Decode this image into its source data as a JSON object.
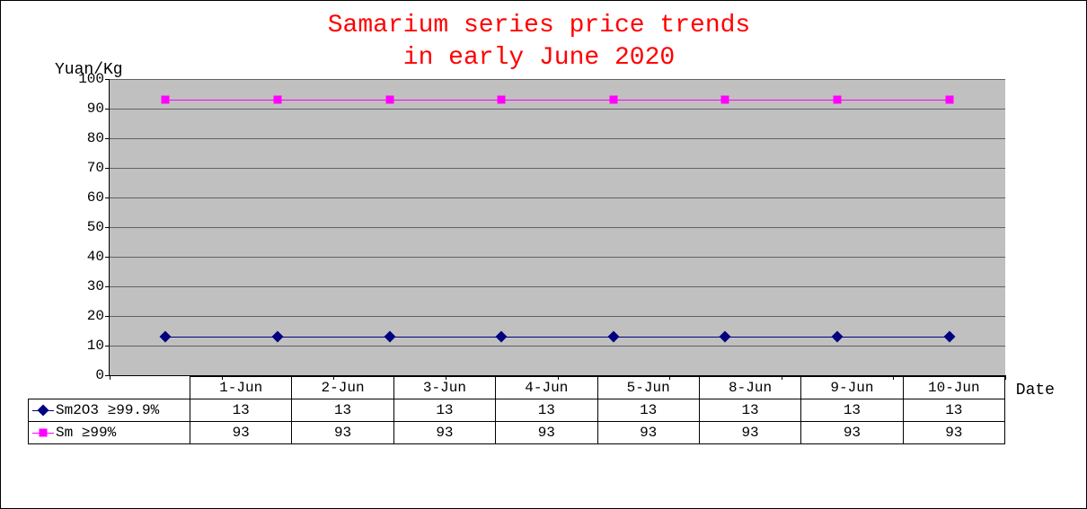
{
  "chart": {
    "type": "line",
    "title_line1": "Samarium series price trends",
    "title_line2": "in early June 2020",
    "title_color": "#ff0000",
    "title_fontsize": 28,
    "y_axis_label": "Yuan/Kg",
    "x_axis_label": "Date",
    "plot_bg": "#c0c0c0",
    "grid_color": "#626262",
    "ylim": [
      0,
      100
    ],
    "ytick_step": 10,
    "y_ticks": [
      0,
      10,
      20,
      30,
      40,
      50,
      60,
      70,
      80,
      90,
      100
    ],
    "categories": [
      "1-Jun",
      "2-Jun",
      "3-Jun",
      "4-Jun",
      "5-Jun",
      "8-Jun",
      "9-Jun",
      "10-Jun"
    ],
    "series": [
      {
        "name": "Sm2O3 ≥99.9%",
        "marker": "diamond",
        "color": "#000080",
        "values": [
          13,
          13,
          13,
          13,
          13,
          13,
          13,
          13
        ]
      },
      {
        "name": "Sm ≥99%",
        "marker": "square",
        "color": "#ff00ff",
        "values": [
          93,
          93,
          93,
          93,
          93,
          93,
          93,
          93
        ]
      }
    ]
  }
}
